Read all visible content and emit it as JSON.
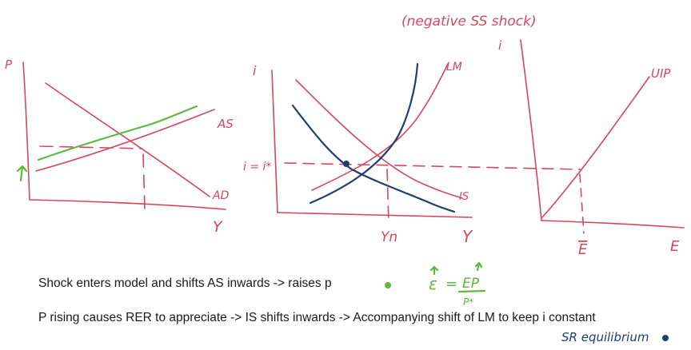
{
  "notes": [
    "Shock enters model and shifts AS inwards -> raises p",
    "P rising causes RER to appreciate -> IS shifts inwards -> Accompanying shift of LM to keep i constant"
  ],
  "handwritten": {
    "heading": "(negative SS shock)",
    "sr_equilibrium": "SR equilibrium",
    "formula_lhs": "ε",
    "formula_eq": "=",
    "formula_num": "EP",
    "formula_den": "P*"
  },
  "panel1": {
    "y_axis": "P",
    "x_axis": "Y",
    "curve_as": "AS",
    "curve_ad": "AD"
  },
  "panel2": {
    "y_axis": "i",
    "x_axis": "Y",
    "curve_lm": "LM",
    "curve_is": "IS",
    "rate_label": "i = i*",
    "output_label": "Yn"
  },
  "panel3": {
    "y_axis": "i",
    "x_axis": "E",
    "curve_uip": "UIP",
    "e_label": "E",
    "e_bar_label": "E"
  },
  "colors": {
    "red": "#d6475f",
    "green": "#5fb83a",
    "blue": "#1f3f6e",
    "text": "#1a1a1a"
  }
}
